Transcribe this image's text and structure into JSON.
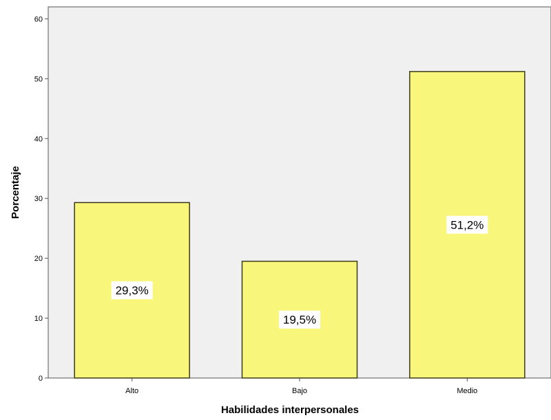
{
  "chart_data": {
    "type": "bar",
    "categories": [
      "Alto",
      "Bajo",
      "Medio"
    ],
    "values": [
      29.3,
      19.5,
      51.2
    ],
    "data_labels": [
      "29,3%",
      "19,5%",
      "51,2%"
    ],
    "title": "",
    "xlabel": "Habilidades interpersonales",
    "ylabel": "Porcentaje",
    "ylim": [
      0,
      62
    ],
    "yticks": [
      0,
      10,
      20,
      30,
      40,
      50,
      60
    ],
    "ytick_labels": [
      "0",
      "10",
      "20",
      "30",
      "40",
      "50",
      "60"
    ],
    "grid": false,
    "legend": "none",
    "colors": {
      "bar_fill": "#f9f77b",
      "bar_stroke": "#3a3a1a",
      "plot_background": "#f0f0f0",
      "axis": "#555555"
    }
  }
}
